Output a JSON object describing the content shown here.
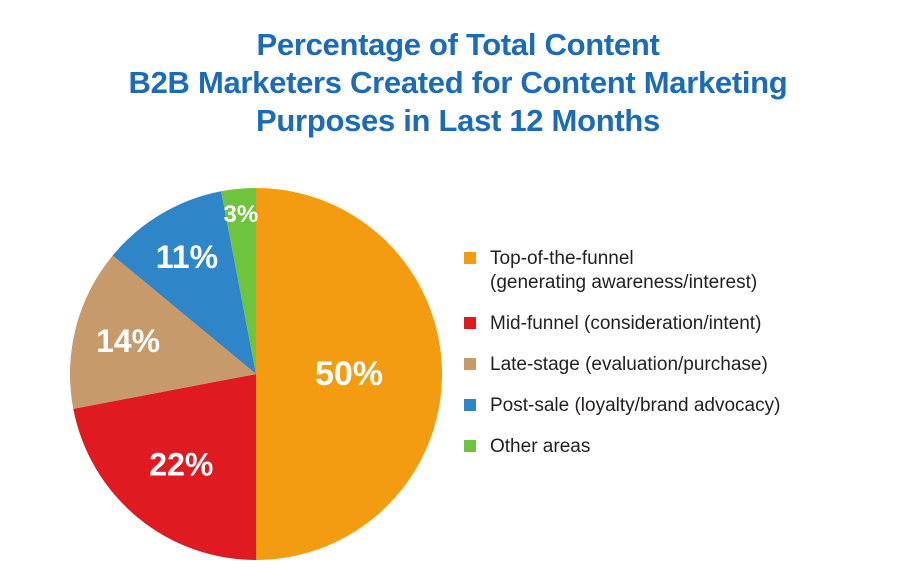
{
  "title": {
    "lines": [
      "Percentage of Total Content",
      "B2B Marketers Created for Content Marketing",
      "Purposes in Last 12 Months"
    ],
    "color": "#1B6BB8"
  },
  "chart_data": {
    "type": "pie",
    "title": "Percentage of Total Content B2B Marketers Created for Content Marketing Purposes in Last 12 Months",
    "unit": "percent",
    "start_angle_deg": 0,
    "direction": "clockwise",
    "legend_position": "right",
    "value_labels": "inside, white, bold",
    "slices": [
      {
        "label": "Top-of-the-funnel (generating awareness/interest)",
        "legend_label": "Top-of-the-funnel\n(generating awareness/interest)",
        "value": 50,
        "value_label": "50%",
        "color": "#F39C11"
      },
      {
        "label": "Mid-funnel (consideration/intent)",
        "legend_label": "Mid-funnel (consideration/intent)",
        "value": 22,
        "value_label": "22%",
        "color": "#DF1B21"
      },
      {
        "label": "Late-stage (evaluation/purchase)",
        "legend_label": "Late-stage (evaluation/purchase)",
        "value": 14,
        "value_label": "14%",
        "color": "#C79A6B"
      },
      {
        "label": "Post-sale (loyalty/brand advocacy)",
        "legend_label": "Post-sale (loyalty/brand advocacy)",
        "value": 11,
        "value_label": "11%",
        "color": "#2E86C8"
      },
      {
        "label": "Other areas",
        "legend_label": "Other areas",
        "value": 3,
        "value_label": "3%",
        "color": "#6EC43C"
      }
    ]
  }
}
